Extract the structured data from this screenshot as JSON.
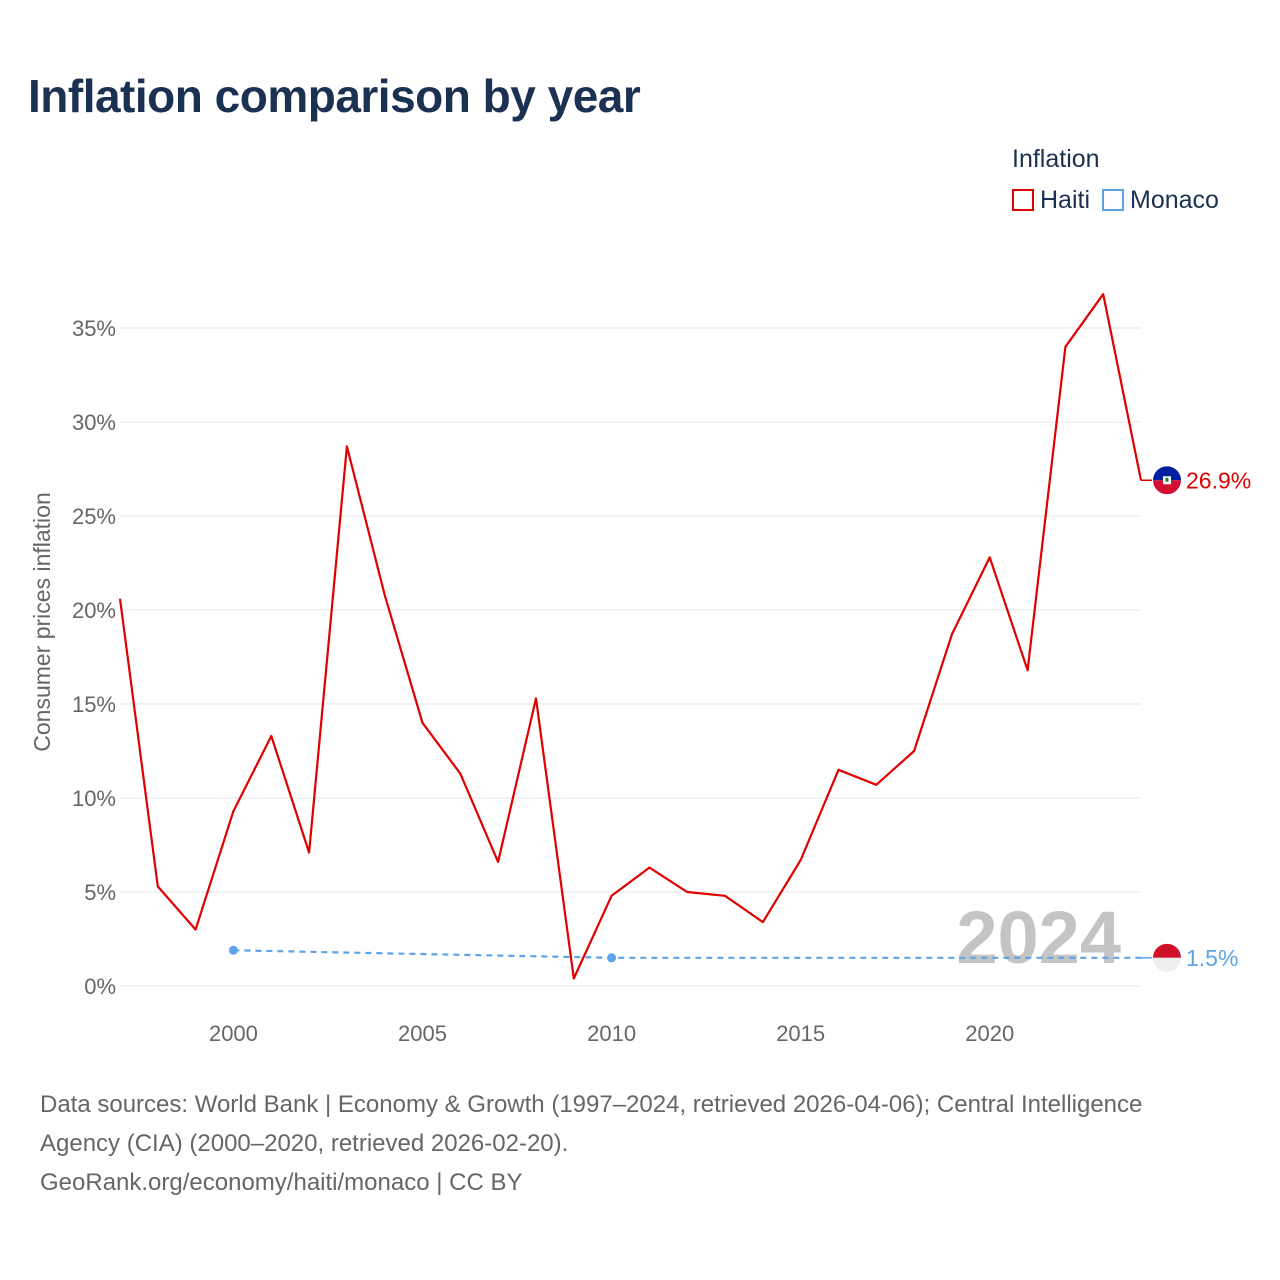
{
  "title": "Inflation comparison by year",
  "legend": {
    "title": "Inflation",
    "items": [
      {
        "label": "Haiti",
        "color": "#e00000"
      },
      {
        "label": "Monaco",
        "color": "#5ba4e8"
      }
    ]
  },
  "chart_data": {
    "type": "line",
    "title": "Inflation comparison by year",
    "xlabel": "",
    "ylabel": "Consumer prices inflation",
    "xlim": [
      1997,
      2024
    ],
    "ylim": [
      0,
      37
    ],
    "yticks": [
      0,
      5,
      10,
      15,
      20,
      25,
      30,
      35
    ],
    "ytick_labels": [
      "0%",
      "5%",
      "10%",
      "15%",
      "20%",
      "25%",
      "30%",
      "35%"
    ],
    "xticks": [
      2000,
      2005,
      2010,
      2015,
      2020
    ],
    "xtick_labels": [
      "2000",
      "2005",
      "2010",
      "2015",
      "2020"
    ],
    "grid": true,
    "watermark_year": "2024",
    "series": [
      {
        "name": "Haiti",
        "color": "#e00000",
        "style": "solid",
        "x": [
          1997,
          1998,
          1999,
          2000,
          2001,
          2002,
          2003,
          2004,
          2005,
          2006,
          2007,
          2008,
          2009,
          2010,
          2011,
          2012,
          2013,
          2014,
          2015,
          2016,
          2017,
          2018,
          2019,
          2020,
          2021,
          2022,
          2023,
          2024
        ],
        "values": [
          20.6,
          5.3,
          3.0,
          9.3,
          13.3,
          7.1,
          28.7,
          20.8,
          14.0,
          11.3,
          6.6,
          15.3,
          0.4,
          4.8,
          6.3,
          5.0,
          4.8,
          3.4,
          6.7,
          11.5,
          10.7,
          12.5,
          18.7,
          22.8,
          16.8,
          34.0,
          36.8,
          26.9
        ],
        "end_label": "26.9%"
      },
      {
        "name": "Monaco",
        "color": "#5ba4e8",
        "style": "dashed",
        "x": [
          2000,
          2010,
          2024
        ],
        "values": [
          1.9,
          1.5,
          1.5
        ],
        "markers": [
          2000,
          2010
        ],
        "end_label": "1.5%"
      }
    ]
  },
  "footer": {
    "line1": "Data sources: World Bank | Economy & Growth (1997–2024, retrieved 2026-04-06); Central Intelligence",
    "line2": "Agency (CIA) (2000–2020, retrieved 2026-02-20).",
    "line3": "GeoRank.org/economy/haiti/monaco | CC BY"
  }
}
